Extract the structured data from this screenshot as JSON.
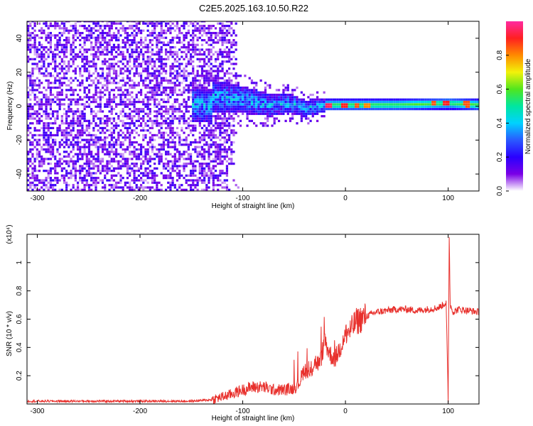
{
  "title": "C2E5.2025.163.10.50.R22",
  "colors": {
    "snr_line": "#e8302c",
    "scatter_base": "#7a2ae6",
    "band_core": "#e52020",
    "band_mid": "#f2e50c",
    "band_outer": "#3bd43b"
  },
  "chart_data": [
    {
      "type": "heatmap",
      "xlabel": "Height of straight line (km)",
      "ylabel": "Frequency (Hz)",
      "xlim": [
        -310,
        130
      ],
      "ylim": [
        -50,
        50
      ],
      "x_ticks": [
        -300,
        -200,
        -100,
        0,
        100
      ],
      "y_ticks": [
        -40,
        -20,
        0,
        20,
        40
      ],
      "colorbar": {
        "label": "Normalized spectral amplitude",
        "range": [
          0,
          1
        ],
        "ticks": [
          "0.0",
          "0.2",
          "0.4",
          "0.6",
          "0.8"
        ],
        "stops": [
          "#ff2aa0",
          "#ff2020",
          "#ff8a00",
          "#f2f20a",
          "#50e61e",
          "#00e6a0",
          "#00d2ff",
          "#2a5aff",
          "#2a00ff",
          "#7a00e6",
          "#ffffff"
        ]
      },
      "description_series": {
        "noise_region_x": [
          -310,
          -115
        ],
        "noise_amplitude": 0.15,
        "transition_x": [
          -140,
          -20
        ],
        "band_center_hz": [
          [
            -130,
            5
          ],
          [
            -100,
            3
          ],
          [
            -75,
            0
          ],
          [
            -55,
            1
          ],
          [
            -40,
            -2
          ],
          [
            -20,
            0
          ],
          [
            0,
            0
          ],
          [
            50,
            0
          ],
          [
            100,
            1
          ],
          [
            130,
            0
          ]
        ],
        "band_peaks": [
          {
            "x": -18,
            "amp": 0.95
          },
          {
            "x": -2,
            "amp": 0.9
          },
          {
            "x": 10,
            "amp": 0.85
          },
          {
            "x": 20,
            "amp": 0.8
          },
          {
            "x": 85,
            "amp": 0.85
          },
          {
            "x": 97,
            "amp": 0.9
          },
          {
            "x": 117,
            "amp": 0.85
          }
        ]
      }
    },
    {
      "type": "line",
      "xlabel": "Height of straight line (km)",
      "ylabel": "SNR (10 * v/v)",
      "y_scale_label": "(x10⁴)",
      "xlim": [
        -310,
        130
      ],
      "ylim": [
        0,
        1.2
      ],
      "x_ticks": [
        -300,
        -200,
        -100,
        0,
        100
      ],
      "y_ticks": [
        0.2,
        0.4,
        0.6,
        0.8,
        1.0
      ],
      "series": [
        {
          "x": [
            -310,
            -250,
            -200,
            -150,
            -130,
            -115,
            -100,
            -90,
            -80,
            -70,
            -60,
            -50,
            -45,
            -40,
            -35,
            -30,
            -25,
            -20,
            -15,
            -10,
            -5,
            0,
            5,
            10,
            15,
            20,
            30,
            40,
            50,
            60,
            70,
            80,
            90,
            95,
            98,
            100,
            101,
            102,
            105,
            110,
            120,
            130
          ],
          "values": [
            0.02,
            0.02,
            0.02,
            0.02,
            0.03,
            0.06,
            0.1,
            0.12,
            0.12,
            0.1,
            0.1,
            0.11,
            0.15,
            0.25,
            0.2,
            0.3,
            0.28,
            0.45,
            0.35,
            0.32,
            0.4,
            0.5,
            0.52,
            0.58,
            0.6,
            0.62,
            0.65,
            0.66,
            0.67,
            0.67,
            0.66,
            0.67,
            0.68,
            0.7,
            0.72,
            0.02,
            1.2,
            0.7,
            0.65,
            0.67,
            0.66,
            0.65
          ]
        }
      ]
    }
  ]
}
